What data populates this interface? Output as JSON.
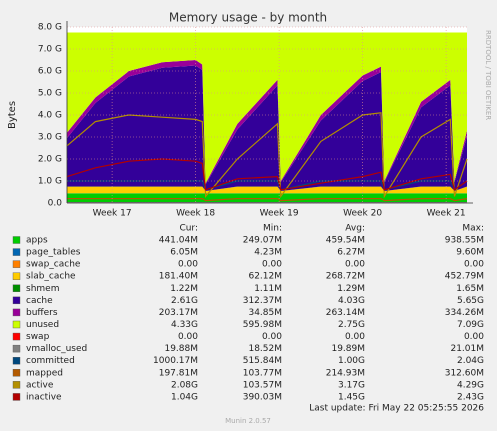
{
  "chart_data": {
    "type": "area",
    "title": "Memory usage - by month",
    "y_label": "Bytes",
    "side_label": "RRDTOOL / TOBI OETIKER",
    "x": [
      16.46,
      16.8,
      17.2,
      17.6,
      18.0,
      18.08,
      18.12,
      18.5,
      18.98,
      19.02,
      19.5,
      20.0,
      20.22,
      20.26,
      20.7,
      21.05,
      21.1,
      21.25
    ],
    "xlim": [
      16.46,
      21.25
    ],
    "xticks": [
      {
        "value": 17,
        "label": "Week 17"
      },
      {
        "value": 18,
        "label": "Week 18"
      },
      {
        "value": 19,
        "label": "Week 19"
      },
      {
        "value": 20,
        "label": "Week 20"
      },
      {
        "value": 21,
        "label": "Week 21"
      }
    ],
    "ylim": [
      0,
      8000000000.0
    ],
    "yticks": [
      {
        "value": 0,
        "label": "0.0"
      },
      {
        "value": 1000000000.0,
        "label": "1.0 G"
      },
      {
        "value": 2000000000.0,
        "label": "2.0 G"
      },
      {
        "value": 3000000000.0,
        "label": "3.0 G"
      },
      {
        "value": 4000000000.0,
        "label": "4.0 G"
      },
      {
        "value": 5000000000.0,
        "label": "5.0 G"
      },
      {
        "value": 6000000000.0,
        "label": "6.0 G"
      },
      {
        "value": 7000000000.0,
        "label": "7.0 G"
      },
      {
        "value": 8000000000.0,
        "label": "8.0 G"
      }
    ],
    "grid": true,
    "legend_columns": [
      "Cur:",
      "Min:",
      "Avg:",
      "Max:"
    ],
    "series": [
      {
        "name": "apps",
        "color": "#00cc00",
        "stacked": true,
        "values": [
          440000000.0,
          440000000.0,
          440000000.0,
          440000000.0,
          440000000.0,
          440000000.0,
          440000000.0,
          440000000.0,
          440000000.0,
          440000000.0,
          440000000.0,
          440000000.0,
          440000000.0,
          440000000.0,
          440000000.0,
          440000000.0,
          440000000.0,
          440000000.0
        ],
        "cur": "441.04M",
        "min": "249.07M",
        "avg": "459.54M",
        "max": "938.55M"
      },
      {
        "name": "page_tables",
        "color": "#0066b3",
        "stacked": true,
        "values": [
          6000000.0,
          6000000.0,
          6000000.0,
          6000000.0,
          6000000.0,
          6000000.0,
          6000000.0,
          6000000.0,
          6000000.0,
          6000000.0,
          6000000.0,
          6000000.0,
          6000000.0,
          6000000.0,
          6000000.0,
          6000000.0,
          6000000.0,
          6000000.0
        ],
        "cur": "6.05M",
        "min": "4.23M",
        "avg": "6.27M",
        "max": "9.60M"
      },
      {
        "name": "swap_cache",
        "color": "#ff8000",
        "stacked": true,
        "values": [
          0,
          0,
          0,
          0,
          0,
          0,
          0,
          0,
          0,
          0,
          0,
          0,
          0,
          0,
          0,
          0,
          0,
          0
        ],
        "cur": "0.00",
        "min": "0.00",
        "avg": "0.00",
        "max": "0.00"
      },
      {
        "name": "slab_cache",
        "color": "#ffcc00",
        "stacked": true,
        "values": [
          300000000.0,
          300000000.0,
          300000000.0,
          300000000.0,
          300000000.0,
          300000000.0,
          100000000.0,
          300000000.0,
          300000000.0,
          100000000.0,
          300000000.0,
          300000000.0,
          300000000.0,
          100000000.0,
          300000000.0,
          300000000.0,
          100000000.0,
          300000000.0
        ],
        "cur": "181.40M",
        "min": "62.12M",
        "avg": "268.72M",
        "max": "452.79M"
      },
      {
        "name": "shmem",
        "color": "#008f00",
        "stacked": true,
        "values": [
          1200000.0,
          1200000.0,
          1200000.0,
          1200000.0,
          1200000.0,
          1200000.0,
          1200000.0,
          1200000.0,
          1200000.0,
          1200000.0,
          1200000.0,
          1200000.0,
          1200000.0,
          1200000.0,
          1200000.0,
          1200000.0,
          1200000.0,
          1200000.0
        ],
        "cur": "1.22M",
        "min": "1.11M",
        "avg": "1.29M",
        "max": "1.65M"
      },
      {
        "name": "cache",
        "color": "#330099",
        "stacked": true,
        "values": [
          2200000000.0,
          3800000000.0,
          5000000000.0,
          5400000000.0,
          5500000000.0,
          5300000000.0,
          300000000.0,
          2600000000.0,
          4600000000.0,
          400000000.0,
          3000000000.0,
          4800000000.0,
          5200000000.0,
          400000000.0,
          3600000000.0,
          4600000000.0,
          400000000.0,
          2300000000.0
        ],
        "cur": "2.61G",
        "min": "312.37M",
        "avg": "4.03G",
        "max": "5.65G"
      },
      {
        "name": "buffers",
        "color": "#990099",
        "stacked": true,
        "values": [
          250000000.0,
          250000000.0,
          250000000.0,
          250000000.0,
          250000000.0,
          250000000.0,
          50000000.0,
          250000000.0,
          250000000.0,
          50000000.0,
          250000000.0,
          250000000.0,
          250000000.0,
          50000000.0,
          250000000.0,
          250000000.0,
          50000000.0,
          250000000.0
        ],
        "cur": "203.17M",
        "min": "34.85M",
        "avg": "263.14M",
        "max": "334.26M"
      },
      {
        "name": "unused",
        "color": "#ccff00",
        "stacked": true,
        "values": [
          4550000000.0,
          2950000000.0,
          1750000000.0,
          1350000000.0,
          1250000000.0,
          1450000000.0,
          6850000000.0,
          4150000000.0,
          2150000000.0,
          6750000000.0,
          3750000000.0,
          1950000000.0,
          1550000000.0,
          6750000000.0,
          3150000000.0,
          2150000000.0,
          6750000000.0,
          4450000000.0
        ],
        "cur": "4.33G",
        "min": "595.98M",
        "avg": "2.75G",
        "max": "7.09G"
      },
      {
        "name": "swap",
        "color": "#ff0000",
        "stacked": true,
        "values": [
          0,
          0,
          0,
          0,
          0,
          0,
          0,
          0,
          0,
          0,
          0,
          0,
          0,
          0,
          0,
          0,
          0,
          0
        ],
        "cur": "0.00",
        "min": "0.00",
        "avg": "0.00",
        "max": "0.00"
      },
      {
        "name": "vmalloc_used",
        "color": "#808080",
        "stacked": false,
        "values": [
          20000000.0,
          20000000.0,
          20000000.0,
          20000000.0,
          20000000.0,
          20000000.0,
          20000000.0,
          20000000.0,
          20000000.0,
          20000000.0,
          20000000.0,
          20000000.0,
          20000000.0,
          20000000.0,
          20000000.0,
          20000000.0,
          20000000.0,
          20000000.0
        ],
        "cur": "19.88M",
        "min": "18.52M",
        "avg": "19.89M",
        "max": "21.01M"
      },
      {
        "name": "committed",
        "color": "#00487d",
        "stacked": false,
        "values": [
          1000000000.0,
          1000000000.0,
          1000000000.0,
          1000000000.0,
          1000000000.0,
          1000000000.0,
          600000000.0,
          1000000000.0,
          1000000000.0,
          600000000.0,
          1000000000.0,
          1000000000.0,
          1000000000.0,
          600000000.0,
          1000000000.0,
          1000000000.0,
          600000000.0,
          1000000000.0
        ],
        "cur": "1000.17M",
        "min": "515.84M",
        "avg": "1.00G",
        "max": "2.04G"
      },
      {
        "name": "mapped",
        "color": "#b35a00",
        "stacked": false,
        "values": [
          200000000.0,
          200000000.0,
          200000000.0,
          200000000.0,
          200000000.0,
          200000000.0,
          110000000.0,
          200000000.0,
          200000000.0,
          110000000.0,
          200000000.0,
          200000000.0,
          200000000.0,
          110000000.0,
          200000000.0,
          200000000.0,
          110000000.0,
          200000000.0
        ],
        "cur": "197.81M",
        "min": "103.77M",
        "avg": "214.93M",
        "max": "312.60M"
      },
      {
        "name": "active",
        "color": "#b38f00",
        "stacked": false,
        "values": [
          2600000000.0,
          3700000000.0,
          4000000000.0,
          3900000000.0,
          3800000000.0,
          3700000000.0,
          300000000.0,
          2000000000.0,
          3600000000.0,
          300000000.0,
          2800000000.0,
          4000000000.0,
          4100000000.0,
          300000000.0,
          3000000000.0,
          3800000000.0,
          300000000.0,
          2000000000.0
        ],
        "cur": "2.08G",
        "min": "103.57M",
        "avg": "3.17G",
        "max": "4.29G"
      },
      {
        "name": "inactive",
        "color": "#b30000",
        "stacked": false,
        "values": [
          1200000000.0,
          1600000000.0,
          1900000000.0,
          2000000000.0,
          1900000000.0,
          1800000000.0,
          600000000.0,
          1100000000.0,
          1200000000.0,
          600000000.0,
          900000000.0,
          1200000000.0,
          1400000000.0,
          600000000.0,
          1100000000.0,
          1300000000.0,
          600000000.0,
          1000000000.0
        ],
        "cur": "1.04G",
        "min": "390.03M",
        "avg": "1.45G",
        "max": "2.43G"
      }
    ],
    "last_update": "Last update: Fri May 22 05:25:55 2026",
    "version": "Munin 2.0.57"
  }
}
